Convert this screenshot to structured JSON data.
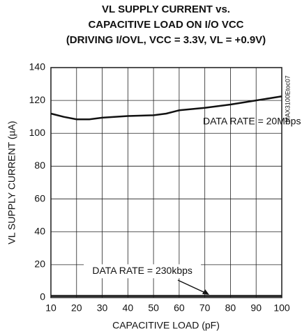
{
  "chart_data": {
    "type": "line",
    "title": [
      "VL SUPPLY CURRENT vs.",
      "CAPACITIVE LOAD ON I/O VCC",
      "(DRIVING I/OVL, VCC = 3.3V, VL = +0.9V)"
    ],
    "x_label": "CAPACITIVE LOAD (pF)",
    "y_label": "VL SUPPLY CURRENT (µA)",
    "watermark": "MAX3100Etoc07",
    "x": [
      10,
      15,
      20,
      25,
      30,
      40,
      50,
      55,
      60,
      70,
      80,
      90,
      100
    ],
    "series": [
      {
        "name": "DATA RATE = 20Mbps",
        "color": "#111111",
        "values": [
          112,
          110,
          108.5,
          108.5,
          109.5,
          110.5,
          111,
          112,
          114,
          115.5,
          117.5,
          120,
          122.5
        ]
      },
      {
        "name": "DATA RATE = 230kbps",
        "color": "#111111",
        "values": [
          1,
          1,
          1,
          1,
          1,
          1,
          1,
          1,
          1,
          1,
          1,
          1,
          1
        ]
      }
    ],
    "xlim": [
      10,
      100
    ],
    "xticks": [
      10,
      20,
      30,
      40,
      50,
      60,
      70,
      80,
      90,
      100
    ],
    "ylim": [
      0,
      140
    ],
    "yticks": [
      0,
      20,
      40,
      60,
      80,
      100,
      120,
      140
    ],
    "grid": true
  }
}
